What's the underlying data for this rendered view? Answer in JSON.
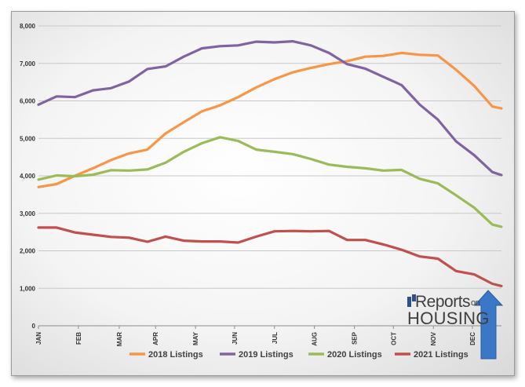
{
  "chart_data": {
    "type": "line",
    "title": "",
    "xlabel": "",
    "ylabel": "",
    "ylim": [
      0,
      8000
    ],
    "y_ticks": [
      "0",
      "1,000",
      "2,000",
      "3,000",
      "4,000",
      "5,000",
      "6,000",
      "7,000",
      "8,000"
    ],
    "x_ticks": [
      {
        "label": "JAN",
        "week": 0
      },
      {
        "label": "FEB",
        "week": 4.4
      },
      {
        "label": "MAR",
        "week": 8.9
      },
      {
        "label": "APR",
        "week": 12.9
      },
      {
        "label": "MAY",
        "week": 17.3
      },
      {
        "label": "JUN",
        "week": 21.6
      },
      {
        "label": "JUL",
        "week": 26
      },
      {
        "label": "AUG",
        "week": 30.4
      },
      {
        "label": "SEP",
        "week": 34.8
      },
      {
        "label": "OCT",
        "week": 39.1
      },
      {
        "label": "NOV",
        "week": 43.5
      },
      {
        "label": "DEC",
        "week": 47.8
      }
    ],
    "grid": true,
    "legend_position": "bottom",
    "series": [
      {
        "name": "2018 Listings",
        "color": "#F79646",
        "x": [
          0,
          2,
          4,
          6,
          8,
          10,
          12,
          14,
          16,
          18,
          20,
          22,
          24,
          26,
          28,
          30,
          32,
          34,
          36,
          38,
          40,
          42,
          44,
          46,
          48,
          50,
          51
        ],
        "values": [
          3700,
          3780,
          4000,
          4200,
          4420,
          4600,
          4700,
          5130,
          5430,
          5720,
          5880,
          6100,
          6360,
          6580,
          6760,
          6880,
          6980,
          7060,
          7180,
          7200,
          7280,
          7230,
          7210,
          6830,
          6400,
          5850,
          5800
        ]
      },
      {
        "name": "2019 Listings",
        "color": "#8064A2",
        "x": [
          0,
          2,
          4,
          6,
          8,
          10,
          12,
          14,
          16,
          18,
          20,
          22,
          24,
          26,
          28,
          30,
          32,
          34,
          36,
          38,
          40,
          42,
          44,
          46,
          48,
          50,
          51
        ],
        "values": [
          5900,
          6120,
          6100,
          6280,
          6340,
          6520,
          6850,
          6920,
          7180,
          7400,
          7460,
          7480,
          7580,
          7560,
          7590,
          7480,
          7280,
          6980,
          6860,
          6640,
          6420,
          5900,
          5500,
          4920,
          4550,
          4100,
          4020
        ]
      },
      {
        "name": "2020 Listings",
        "color": "#9BBB59",
        "x": [
          0,
          2,
          4,
          6,
          8,
          10,
          12,
          14,
          16,
          18,
          20,
          22,
          24,
          26,
          28,
          30,
          32,
          34,
          36,
          38,
          40,
          42,
          44,
          46,
          48,
          50,
          51
        ],
        "values": [
          3900,
          4010,
          3990,
          4030,
          4150,
          4140,
          4170,
          4350,
          4640,
          4870,
          5030,
          4930,
          4700,
          4640,
          4580,
          4450,
          4300,
          4240,
          4200,
          4140,
          4160,
          3920,
          3800,
          3480,
          3150,
          2700,
          2640
        ]
      },
      {
        "name": "2021 Listings",
        "color": "#C0504D",
        "x": [
          0,
          2,
          4,
          6,
          8,
          10,
          12,
          14,
          16,
          18,
          20,
          22,
          24,
          26,
          28,
          30,
          32,
          34,
          36,
          38,
          40,
          42,
          44,
          46,
          48,
          50,
          51
        ],
        "values": [
          2620,
          2620,
          2490,
          2430,
          2370,
          2350,
          2240,
          2380,
          2270,
          2250,
          2250,
          2220,
          2380,
          2520,
          2530,
          2520,
          2530,
          2290,
          2290,
          2170,
          2030,
          1850,
          1790,
          1460,
          1370,
          1120,
          1060
        ]
      }
    ]
  },
  "branding": {
    "line1": "eports",
    "line1_prefix": "R",
    "line1_suffix": "on",
    "line2": "HOUSING"
  }
}
